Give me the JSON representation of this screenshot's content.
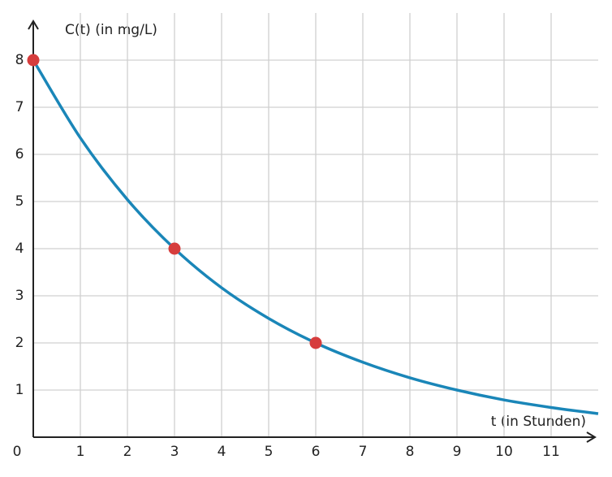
{
  "chart_data": {
    "type": "line",
    "y_label": "C(t) (in mg/L)",
    "x_label": "t (in Stunden)",
    "xlim": [
      0,
      12
    ],
    "ylim": [
      0,
      9
    ],
    "xticks": [
      0,
      1,
      2,
      3,
      4,
      5,
      6,
      7,
      8,
      9,
      10,
      11
    ],
    "yticks": [
      1,
      2,
      3,
      4,
      5,
      6,
      7,
      8
    ],
    "grid": true,
    "curve": {
      "color": "#1a86b8",
      "x": [
        0,
        1,
        2,
        3,
        4,
        5,
        6,
        7,
        8,
        9,
        10,
        11,
        12
      ],
      "values": [
        8,
        6.35,
        5.04,
        4,
        3.17,
        2.52,
        2,
        1.59,
        1.26,
        1,
        0.79,
        0.63,
        0.5
      ]
    },
    "points": {
      "color": "#d63d3d",
      "x": [
        0,
        3,
        6
      ],
      "values": [
        8,
        4,
        2
      ]
    }
  }
}
